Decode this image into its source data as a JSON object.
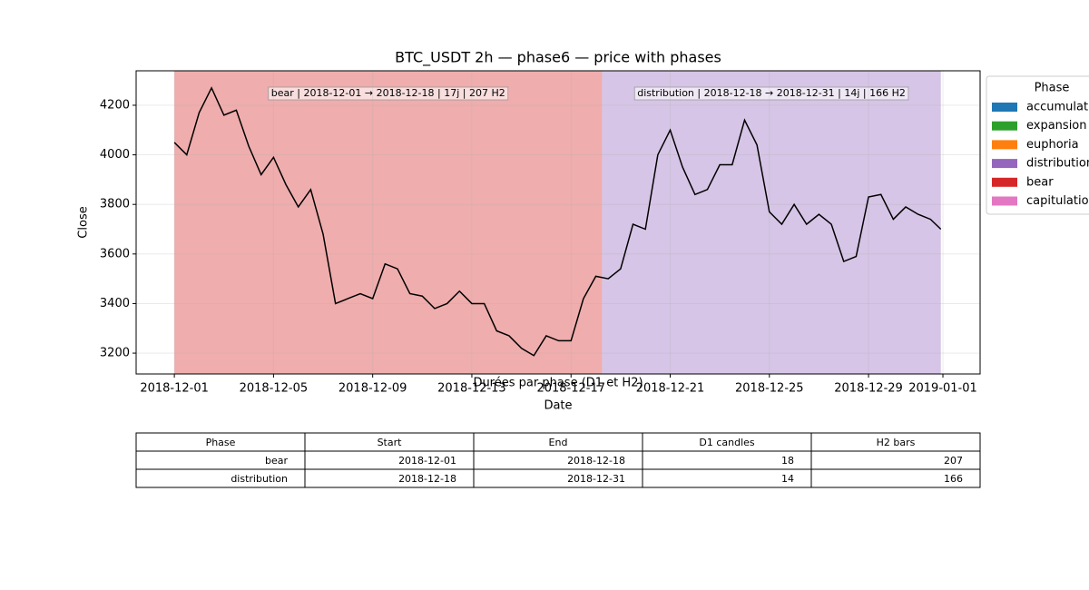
{
  "chart_data": {
    "type": "line",
    "title": "BTC_USDT 2h — phase6 — price with phases",
    "xlabel": "Date",
    "ylabel": "Close",
    "color": "#000000",
    "x": [
      "2018-12-01T00:00",
      "2018-12-01T12:00",
      "2018-12-02T00:00",
      "2018-12-02T12:00",
      "2018-12-03T00:00",
      "2018-12-03T12:00",
      "2018-12-04T00:00",
      "2018-12-04T12:00",
      "2018-12-05T00:00",
      "2018-12-05T12:00",
      "2018-12-06T00:00",
      "2018-12-06T12:00",
      "2018-12-07T00:00",
      "2018-12-07T12:00",
      "2018-12-08T00:00",
      "2018-12-08T12:00",
      "2018-12-09T00:00",
      "2018-12-09T12:00",
      "2018-12-10T00:00",
      "2018-12-10T12:00",
      "2018-12-11T00:00",
      "2018-12-11T12:00",
      "2018-12-12T00:00",
      "2018-12-12T12:00",
      "2018-12-13T00:00",
      "2018-12-13T12:00",
      "2018-12-14T00:00",
      "2018-12-14T12:00",
      "2018-12-15T00:00",
      "2018-12-15T12:00",
      "2018-12-16T00:00",
      "2018-12-16T12:00",
      "2018-12-17T00:00",
      "2018-12-17T12:00",
      "2018-12-18T00:00",
      "2018-12-18T12:00",
      "2018-12-19T00:00",
      "2018-12-19T12:00",
      "2018-12-20T00:00",
      "2018-12-20T12:00",
      "2018-12-21T00:00",
      "2018-12-21T12:00",
      "2018-12-22T00:00",
      "2018-12-22T12:00",
      "2018-12-23T00:00",
      "2018-12-23T12:00",
      "2018-12-24T00:00",
      "2018-12-24T12:00",
      "2018-12-25T00:00",
      "2018-12-25T12:00",
      "2018-12-26T00:00",
      "2018-12-26T12:00",
      "2018-12-27T00:00",
      "2018-12-27T12:00",
      "2018-12-28T00:00",
      "2018-12-28T12:00",
      "2018-12-29T00:00",
      "2018-12-29T12:00",
      "2018-12-30T00:00",
      "2018-12-30T12:00",
      "2018-12-31T00:00",
      "2018-12-31T12:00",
      "2018-12-31T22:00"
    ],
    "values": [
      4050,
      4000,
      4170,
      4270,
      4160,
      4180,
      4035,
      3920,
      3990,
      3880,
      3790,
      3860,
      3680,
      3400,
      3420,
      3440,
      3420,
      3560,
      3540,
      3440,
      3430,
      3380,
      3400,
      3450,
      3400,
      3400,
      3290,
      3270,
      3220,
      3190,
      3270,
      3250,
      3250,
      3420,
      3510,
      3500,
      3540,
      3720,
      3700,
      4000,
      4100,
      3950,
      3840,
      3860,
      3960,
      3960,
      4140,
      4040,
      3770,
      3720,
      3800,
      3720,
      3760,
      3720,
      3570,
      3590,
      3830,
      3840,
      3740,
      3790,
      3760,
      3740,
      3700
    ],
    "xlim": [
      "2018-11-29T11:00",
      "2019-01-02T12:00"
    ],
    "xticks": [
      "2018-12-01",
      "2018-12-05",
      "2018-12-09",
      "2018-12-13",
      "2018-12-17",
      "2018-12-21",
      "2018-12-25",
      "2018-12-29",
      "2019-01-01"
    ],
    "ylim": [
      3116,
      4339
    ],
    "yticks": [
      3200,
      3400,
      3600,
      3800,
      4000,
      4200
    ],
    "grid": true,
    "phases": [
      {
        "label": "bear | 2018-12-01 → 2018-12-18 | 17j | 207 H2",
        "color": "#d62728",
        "xspan": [
          "2018-12-01T00:00",
          "2018-12-18T06:00"
        ]
      },
      {
        "label": "distribution | 2018-12-18 → 2018-12-31 | 14j | 166 H2",
        "color": "#9467bd",
        "xspan": [
          "2018-12-18T06:00",
          "2018-12-31T22:00"
        ]
      }
    ],
    "legend": {
      "title": "Phase",
      "position": "outside-upper-right",
      "entries": [
        {
          "name": "accumulation",
          "color": "#1f77b4"
        },
        {
          "name": "expansion",
          "color": "#2ca02c"
        },
        {
          "name": "euphoria",
          "color": "#ff7f0e"
        },
        {
          "name": "distribution",
          "color": "#9467bd"
        },
        {
          "name": "bear",
          "color": "#d62728"
        },
        {
          "name": "capitulation",
          "color": "#e377c2"
        }
      ]
    }
  },
  "table": {
    "title": "Durées par phase (D1 et H2)",
    "columns": [
      "Phase",
      "Start",
      "End",
      "D1 candles",
      "H2 bars"
    ],
    "rows": [
      [
        "bear",
        "2018-12-01",
        "2018-12-18",
        18,
        207
      ],
      [
        "distribution",
        "2018-12-18",
        "2018-12-31",
        14,
        166
      ]
    ]
  }
}
